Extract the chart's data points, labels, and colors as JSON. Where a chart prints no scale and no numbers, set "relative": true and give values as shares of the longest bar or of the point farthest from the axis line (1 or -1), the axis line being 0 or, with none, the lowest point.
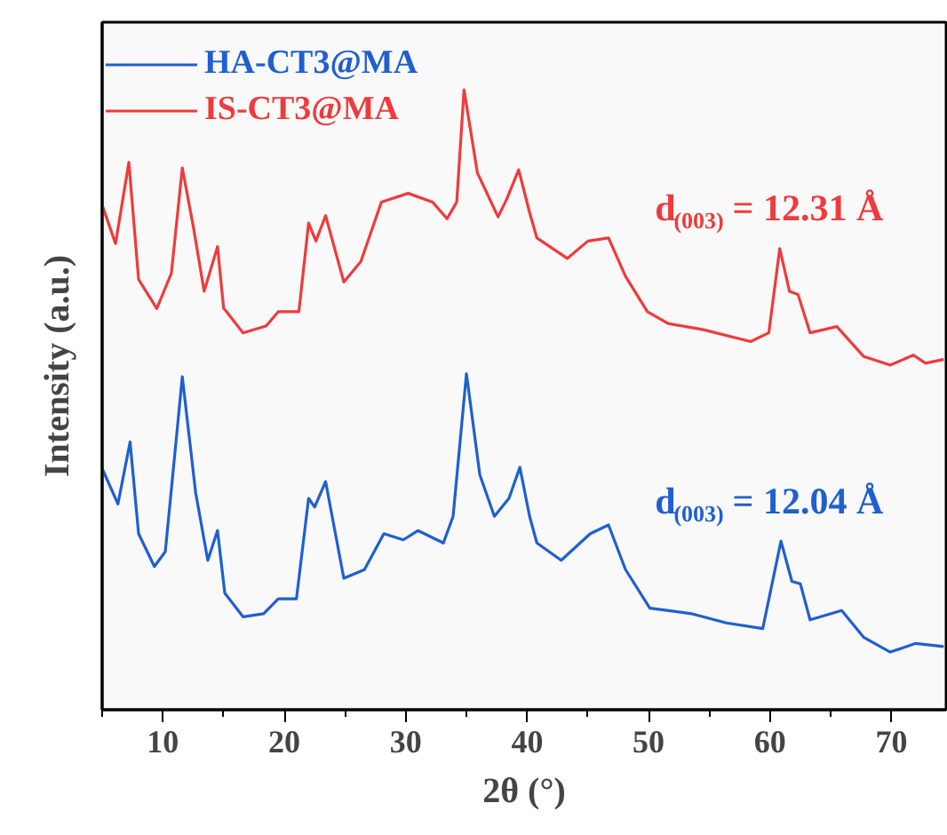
{
  "chart_data": {
    "type": "line",
    "relative": true,
    "xlabel": "2θ (°)",
    "ylabel": "Intensity (a.u.)",
    "xlim": [
      5,
      74.5
    ],
    "xticks": [
      {
        "value": 5,
        "label": null
      },
      10,
      {
        "value": 15,
        "label": null
      },
      20,
      {
        "value": 25,
        "label": null
      },
      30,
      {
        "value": 35,
        "label": null
      },
      40,
      {
        "value": 45,
        "label": null
      },
      50,
      {
        "value": 55,
        "label": null
      },
      60,
      {
        "value": 65,
        "label": null
      },
      70
    ],
    "tick_labels": "x",
    "grid": false,
    "legend": "top left",
    "marker": "none",
    "line_style": "solid",
    "series": [
      {
        "name": "HA-CT3@MA",
        "color": "#1f5fd0",
        "x": [
          5.0,
          6.3,
          7.3,
          8.0,
          9.3,
          10.2,
          11.6,
          12.7,
          13.7,
          14.5,
          15.1,
          16.6,
          18.3,
          19.5,
          21.0,
          22.0,
          22.5,
          23.4,
          24.9,
          26.6,
          28.2,
          29.8,
          31.0,
          33.1,
          33.9,
          35.0,
          36.1,
          37.3,
          38.5,
          39.4,
          40.2,
          40.8,
          42.8,
          45.2,
          46.7,
          48.1,
          50.1,
          53.5,
          56.4,
          59.4,
          60.9,
          61.8,
          62.5,
          63.3,
          65.9,
          67.7,
          69.9,
          72.0,
          74.3
        ],
        "values": [
          0.389,
          0.332,
          0.432,
          0.284,
          0.231,
          0.255,
          0.537,
          0.35,
          0.241,
          0.289,
          0.188,
          0.15,
          0.155,
          0.179,
          0.179,
          0.341,
          0.327,
          0.368,
          0.212,
          0.226,
          0.284,
          0.274,
          0.289,
          0.269,
          0.312,
          0.542,
          0.379,
          0.312,
          0.341,
          0.391,
          0.312,
          0.269,
          0.241,
          0.284,
          0.298,
          0.226,
          0.164,
          0.155,
          0.14,
          0.131,
          0.272,
          0.207,
          0.203,
          0.145,
          0.16,
          0.117,
          0.093,
          0.107,
          0.102
        ]
      },
      {
        "name": "IS-CT3@MA",
        "color": "#f03a3c",
        "x": [
          5.0,
          6.1,
          7.2,
          8.0,
          9.5,
          10.7,
          11.6,
          12.5,
          13.4,
          14.5,
          15.0,
          16.6,
          18.5,
          19.5,
          21.2,
          22.0,
          22.6,
          23.4,
          24.9,
          26.3,
          28.0,
          30.2,
          32.2,
          33.4,
          34.2,
          34.8,
          35.9,
          37.6,
          38.3,
          39.3,
          40.2,
          40.8,
          43.3,
          45.0,
          46.7,
          48.1,
          49.9,
          51.6,
          54.5,
          58.4,
          59.9,
          60.8,
          61.6,
          62.3,
          63.3,
          65.5,
          67.7,
          69.9,
          71.8,
          72.8,
          74.3
        ],
        "values": [
          0.814,
          0.752,
          0.883,
          0.694,
          0.647,
          0.704,
          0.874,
          0.78,
          0.675,
          0.747,
          0.648,
          0.608,
          0.619,
          0.642,
          0.642,
          0.785,
          0.756,
          0.797,
          0.69,
          0.723,
          0.819,
          0.833,
          0.819,
          0.792,
          0.819,
          1.0,
          0.866,
          0.795,
          0.823,
          0.871,
          0.802,
          0.761,
          0.728,
          0.756,
          0.761,
          0.699,
          0.642,
          0.623,
          0.613,
          0.594,
          0.608,
          0.744,
          0.675,
          0.67,
          0.608,
          0.618,
          0.57,
          0.556,
          0.572,
          0.559,
          0.565
        ]
      }
    ],
    "annotations": [
      "d$_{(003)}$ = 12.31 Å",
      "d$_{(003)}$ = 12.04 Å"
    ]
  }
}
